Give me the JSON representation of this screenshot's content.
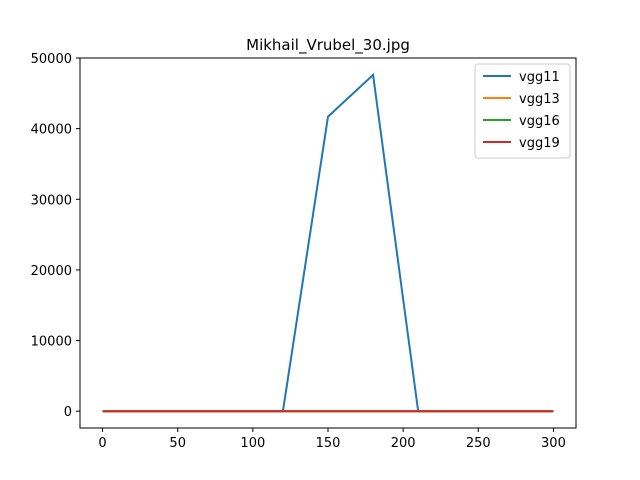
{
  "chart_data": {
    "type": "line",
    "title": "Mikhail_Vrubel_30.jpg",
    "xlabel": "",
    "ylabel": "",
    "x": [
      0,
      30,
      60,
      90,
      120,
      150,
      180,
      210,
      240,
      270,
      300
    ],
    "xlim": [
      -15,
      315
    ],
    "ylim": [
      -2375,
      50000
    ],
    "xticks": [
      0,
      50,
      100,
      150,
      200,
      250,
      300
    ],
    "yticks": [
      0,
      10000,
      20000,
      30000,
      40000,
      50000
    ],
    "grid": false,
    "legend_position": "top-right",
    "series": [
      {
        "name": "vgg11",
        "color": "#1f77b4",
        "values": [
          0,
          0,
          0,
          0,
          0,
          41700,
          47600,
          0,
          0,
          0,
          0
        ]
      },
      {
        "name": "vgg13",
        "color": "#ff7f0e",
        "values": [
          0,
          0,
          0,
          0,
          0,
          0,
          0,
          0,
          0,
          0,
          0
        ]
      },
      {
        "name": "vgg16",
        "color": "#2ca02c",
        "values": [
          0,
          0,
          0,
          0,
          0,
          0,
          0,
          0,
          0,
          0,
          0
        ]
      },
      {
        "name": "vgg19",
        "color": "#d62728",
        "values": [
          0,
          0,
          0,
          0,
          0,
          0,
          0,
          0,
          0,
          0,
          0
        ]
      }
    ]
  }
}
